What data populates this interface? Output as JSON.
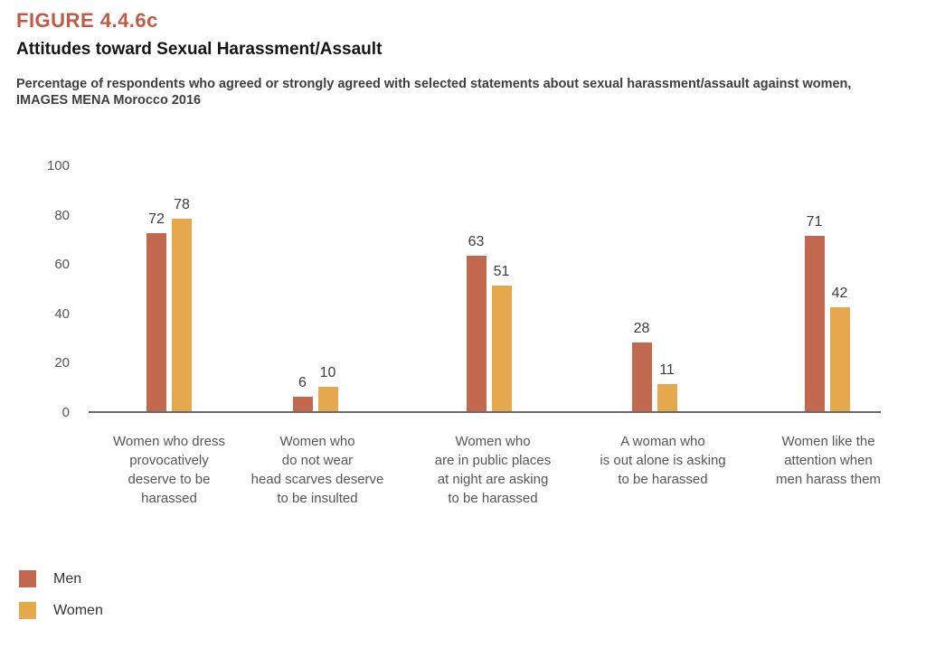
{
  "header": {
    "figure_label": "FIGURE 4.4.6c",
    "title": "Attitudes toward Sexual Harassment/Assault",
    "subtitle_line1": "Percentage of respondents who agreed or strongly agreed with selected statements about sexual harassment/assault against women,",
    "subtitle_line2": "IMAGES MENA Morocco 2016"
  },
  "colors": {
    "figure_label": "#c05a47",
    "men": "#c2684f",
    "women": "#e5a84d",
    "axis_line": "#6a6a6a"
  },
  "legend": [
    {
      "label": "Men",
      "color": "#c2684f"
    },
    {
      "label": "Women",
      "color": "#e5a84d"
    }
  ],
  "chart_data": {
    "type": "bar",
    "title": "Attitudes toward Sexual Harassment/Assault",
    "categories": [
      "Women who dress\nprovocatively\ndeserve to be\nharassed",
      "Women who\ndo not wear\nhead scarves deserve\nto be insulted",
      "Women who\nare in public places\nat night are asking\nto be harassed",
      "A woman who\nis out alone is asking\nto be harassed",
      "Women like the\nattention when\nmen harass them"
    ],
    "series": [
      {
        "name": "Men",
        "color": "#c2684f",
        "values": [
          72,
          6,
          63,
          28,
          71
        ]
      },
      {
        "name": "Women",
        "color": "#e5a84d",
        "values": [
          78,
          10,
          51,
          11,
          42
        ]
      }
    ],
    "xlabel": "",
    "ylabel": "",
    "ylim": [
      0,
      100
    ],
    "yticks": [
      0,
      20,
      40,
      60,
      80,
      100
    ],
    "grid": false,
    "value_labels": true,
    "legend_position": "bottom-left"
  }
}
